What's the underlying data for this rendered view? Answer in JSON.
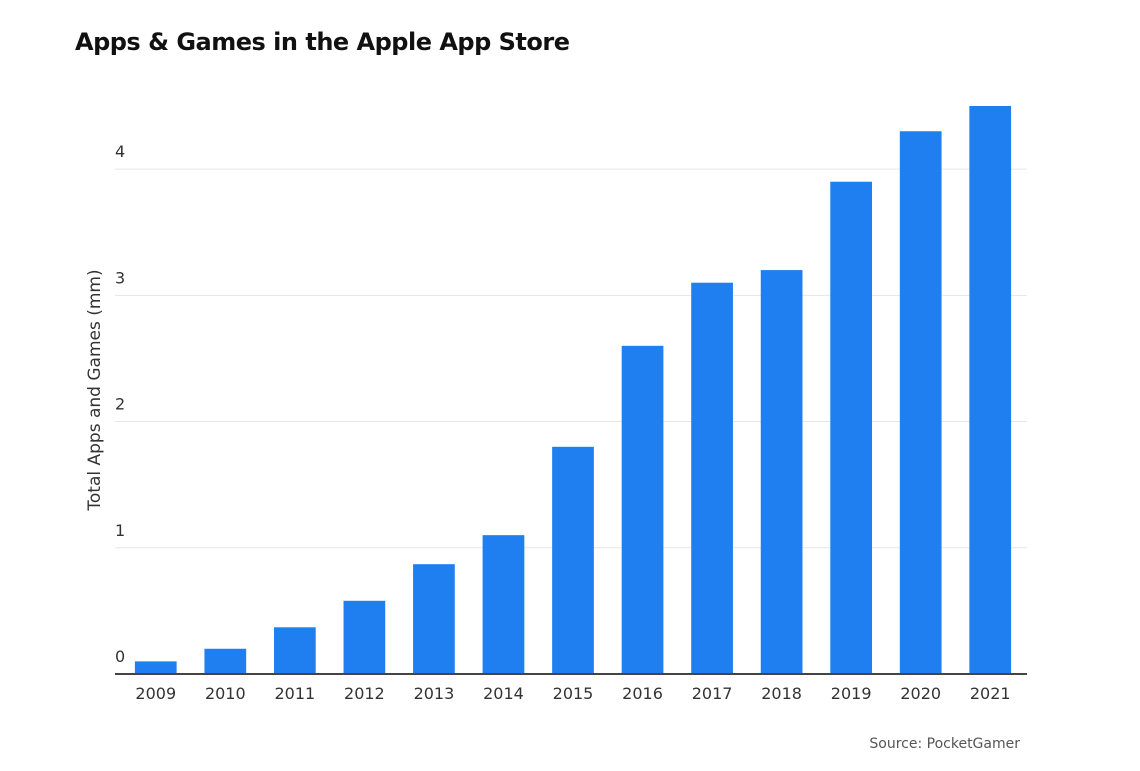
{
  "chart_data": {
    "type": "bar",
    "title": "Apps & Games in the Apple App Store",
    "y_label": "Total Apps and Games (mm)",
    "source": "Source: PocketGamer",
    "categories": [
      "2009",
      "2010",
      "2011",
      "2012",
      "2013",
      "2014",
      "2015",
      "2016",
      "2017",
      "2018",
      "2019",
      "2020",
      "2021"
    ],
    "values": [
      0.1,
      0.2,
      0.37,
      0.58,
      0.87,
      1.1,
      1.8,
      2.6,
      3.1,
      3.2,
      3.9,
      4.3,
      4.5
    ],
    "color": "#1f7ff0",
    "ylim": [
      0,
      4.5
    ],
    "yticks": [
      0,
      1,
      2,
      3,
      4
    ],
    "grid": true
  }
}
